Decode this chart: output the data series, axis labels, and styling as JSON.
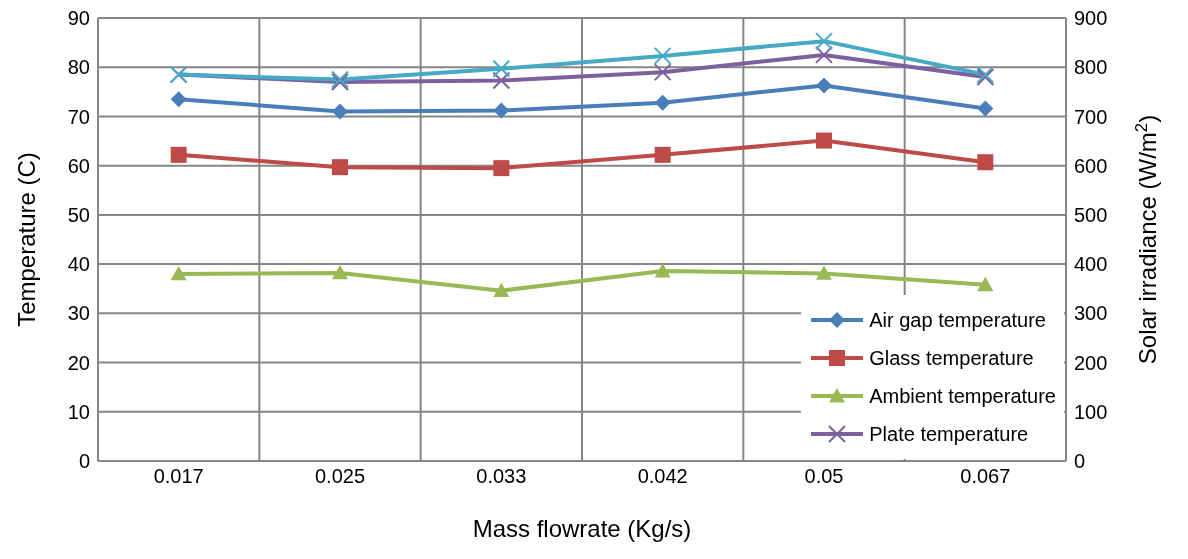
{
  "chart_data": {
    "type": "line",
    "xlabel": "Mass flowrate (Kg/s)",
    "ylabel": "Temperature (C)",
    "y2label": "Solar irradiance (W/m$^{2}$)",
    "categories": [
      "0.017",
      "0.025",
      "0.033",
      "0.042",
      "0.05",
      "0.067"
    ],
    "series": [
      {
        "name": "Air gap temperature",
        "color": "#4a7ebb",
        "marker": "diamond",
        "values": [
          73.5,
          71,
          71.2,
          72.8,
          76.3,
          71.6
        ]
      },
      {
        "name": "Glass temperature",
        "color": "#be4b48",
        "marker": "square",
        "values": [
          62.2,
          59.7,
          59.5,
          62.2,
          65.1,
          60.7
        ]
      },
      {
        "name": "Ambient temperature",
        "color": "#98b954",
        "marker": "triangle",
        "values": [
          38,
          38.2,
          34.6,
          38.6,
          38.1,
          35.8
        ]
      },
      {
        "name": "Plate temperature",
        "color": "#7d60a0",
        "marker": "cross",
        "values": [
          78.5,
          77,
          77.3,
          79,
          82.5,
          78
        ]
      },
      {
        "color": "#46aac5",
        "marker": "cross",
        "axis": "y2",
        "values": [
          785,
          775,
          797,
          823,
          853,
          785
        ]
      }
    ],
    "ylim": [
      0,
      90
    ],
    "yticks": [
      0,
      10,
      20,
      30,
      40,
      50,
      60,
      70,
      80,
      90
    ],
    "y2lim": [
      0,
      900
    ],
    "y2ticks": [
      0,
      100,
      200,
      300,
      400,
      500,
      600,
      700,
      800,
      900
    ],
    "grid": true,
    "legend": "bottom right",
    "line_style": "solid"
  }
}
